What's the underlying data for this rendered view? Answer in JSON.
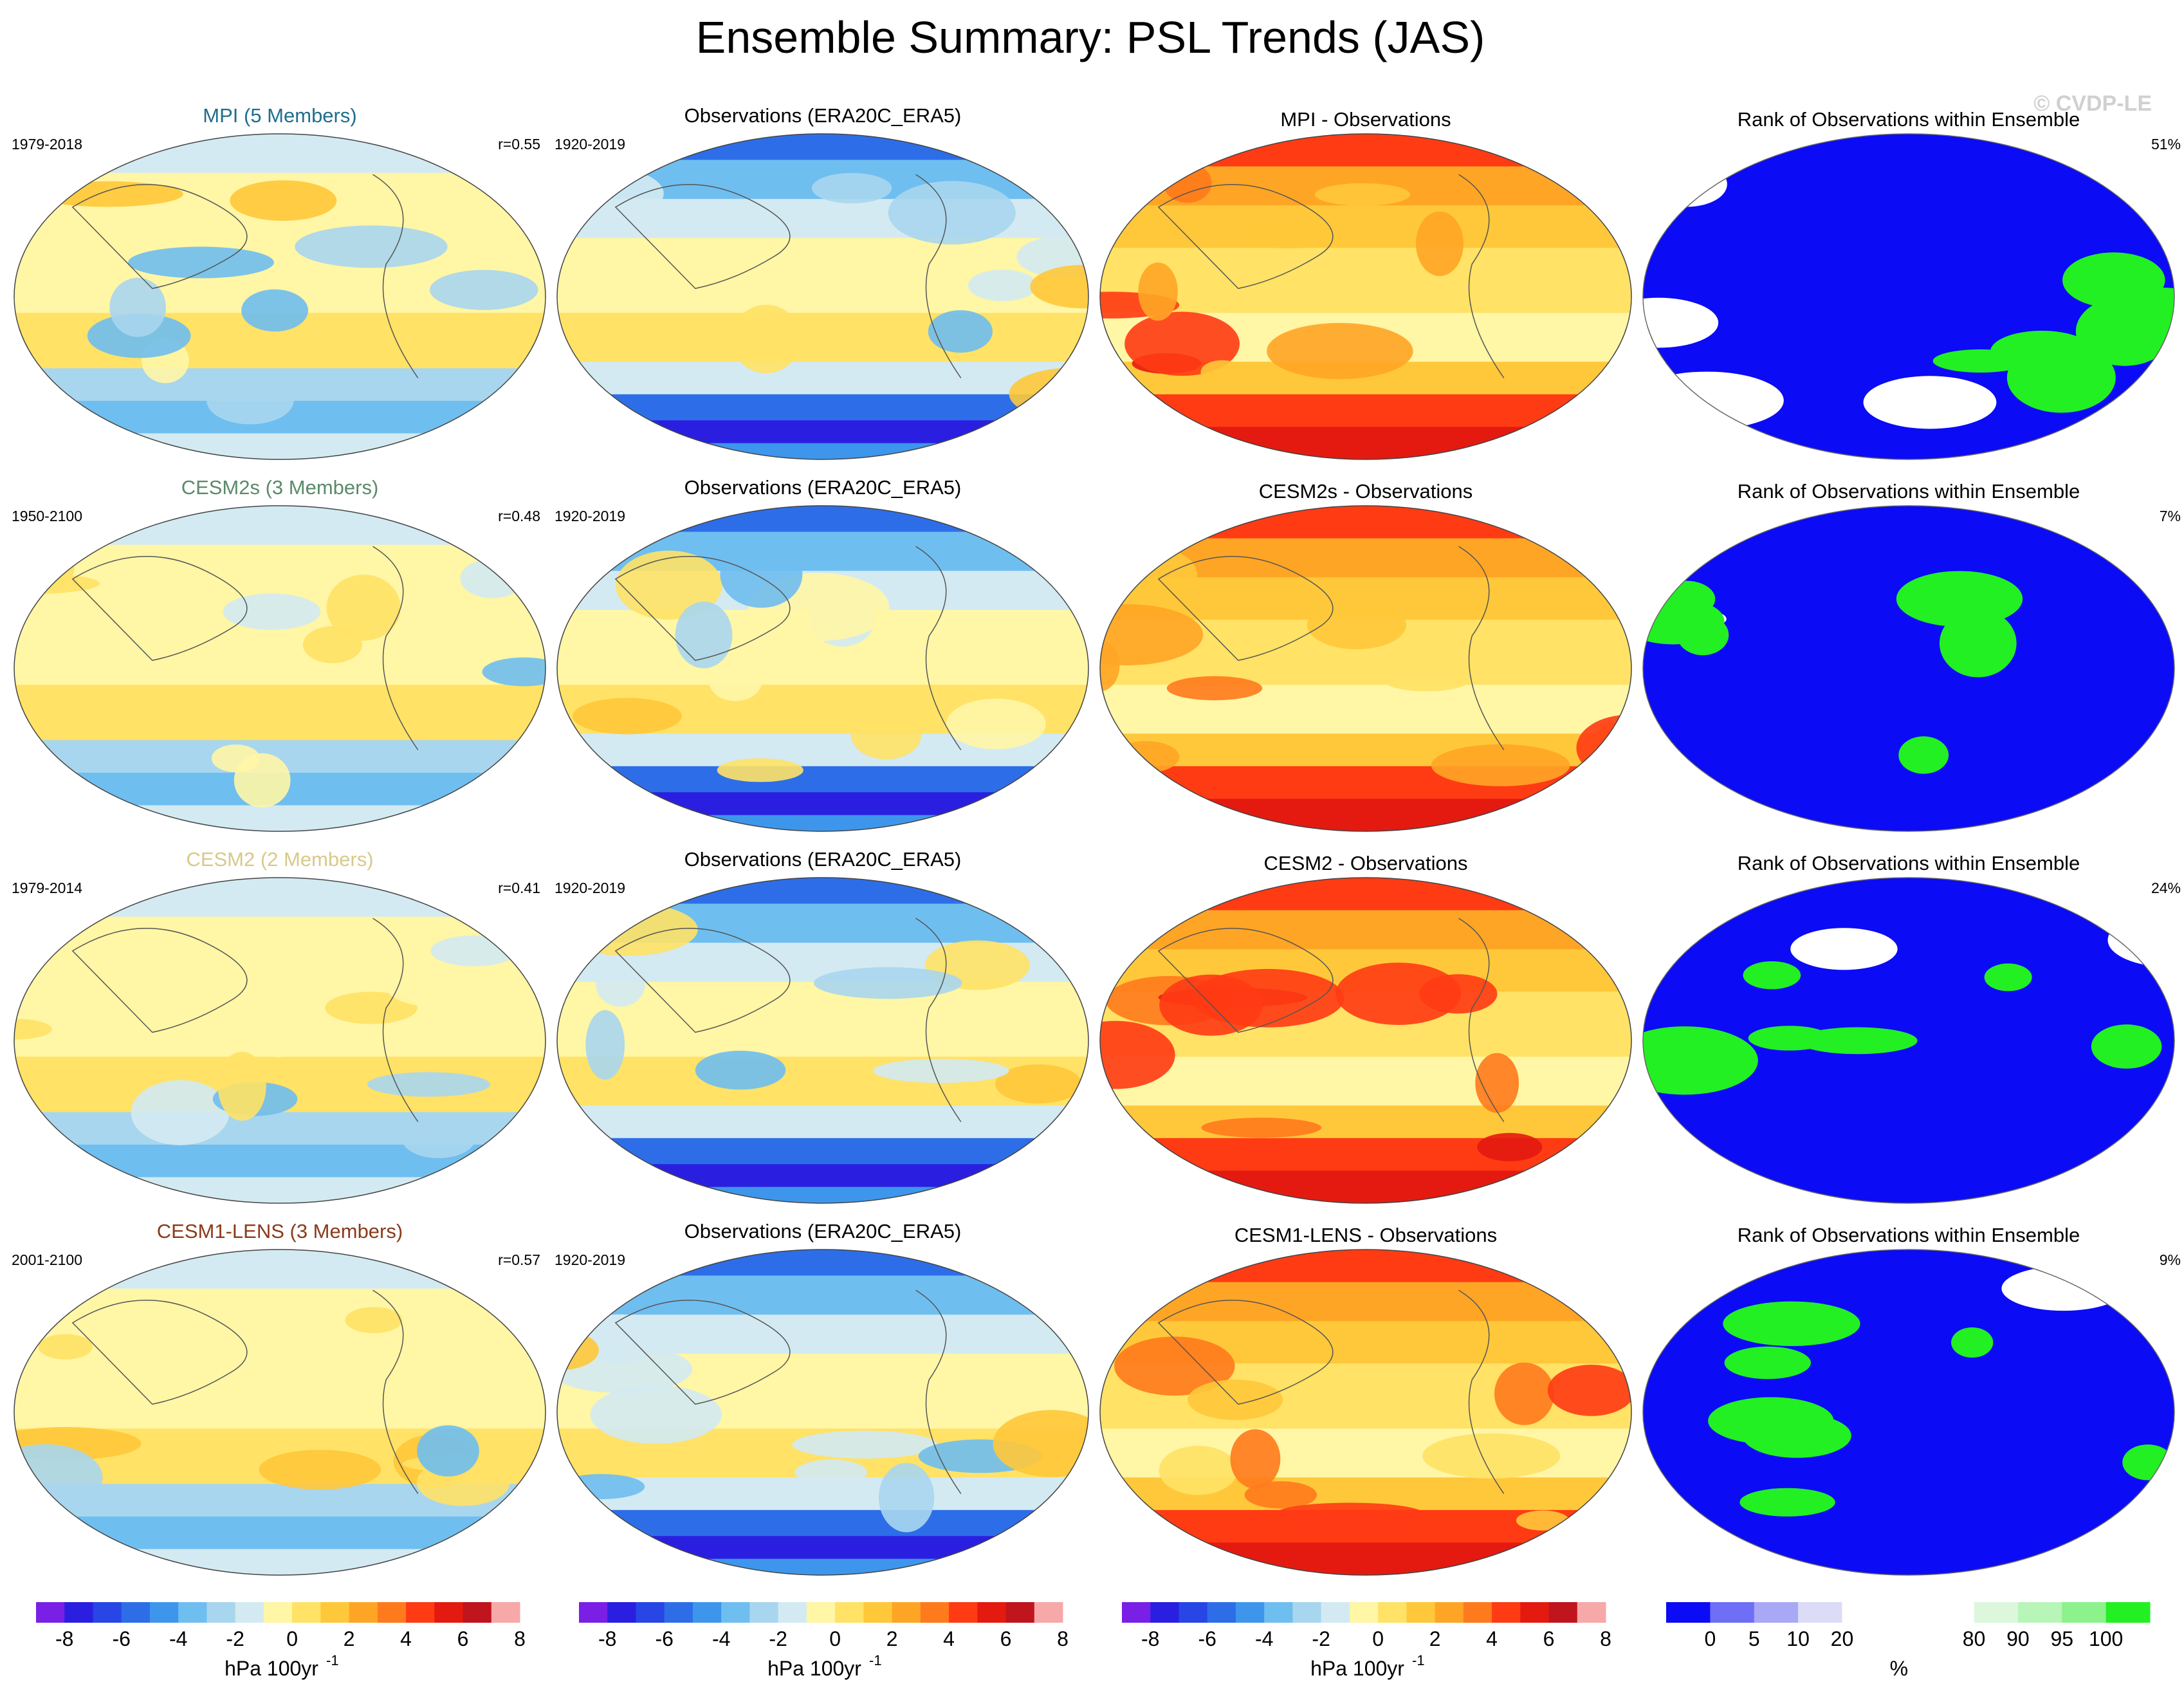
{
  "chart_data": {
    "type": "map",
    "title": "Ensemble Summary: PSL Trends (JAS)",
    "copyright": "© CVDP-LE",
    "colors": {
      "model_title_mpi": "#1f6e8c",
      "model_title_cesm2s": "#5a8a6a",
      "model_title_cesm2": "#d8c98a",
      "model_title_cesm1": "#8b3a1a",
      "coastline": "#555555"
    },
    "rows": [
      {
        "model": {
          "title": "MPI (5 Members)",
          "years": "1979-2018",
          "r": "r=0.55"
        },
        "obs": {
          "title": "Observations (ERA20C_ERA5)",
          "years": "1920-2019"
        },
        "diff": {
          "title": "MPI - Observations"
        },
        "rank": {
          "title": "Rank of Observations within Ensemble",
          "pct": "51%"
        }
      },
      {
        "model": {
          "title": "CESM2s (3 Members)",
          "years": "1950-2100",
          "r": "r=0.48"
        },
        "obs": {
          "title": "Observations (ERA20C_ERA5)",
          "years": "1920-2019"
        },
        "diff": {
          "title": "CESM2s - Observations"
        },
        "rank": {
          "title": "Rank of Observations within Ensemble",
          "pct": "7%"
        }
      },
      {
        "model": {
          "title": "CESM2 (2 Members)",
          "years": "1979-2014",
          "r": "r=0.41"
        },
        "obs": {
          "title": "Observations (ERA20C_ERA5)",
          "years": "1920-2019"
        },
        "diff": {
          "title": "CESM2 - Observations"
        },
        "rank": {
          "title": "Rank of Observations within Ensemble",
          "pct": "24%"
        }
      },
      {
        "model": {
          "title": "CESM1-LENS (3 Members)",
          "years": "2001-2100",
          "r": "r=0.57"
        },
        "obs": {
          "title": "Observations (ERA20C_ERA5)",
          "years": "1920-2019"
        },
        "diff": {
          "title": "CESM1-LENS - Observations"
        },
        "rank": {
          "title": "Rank of Observations within Ensemble",
          "pct": "9%"
        }
      }
    ],
    "trend_colorbar": {
      "label": "hPa 100yr",
      "label_sup": "-1",
      "ticks": [
        "-8",
        "-6",
        "-4",
        "-2",
        "0",
        "2",
        "4",
        "6",
        "8"
      ],
      "colors": [
        "#7a1fe6",
        "#2a1fe0",
        "#2845e6",
        "#2d6ee8",
        "#3d96ec",
        "#6fbef0",
        "#a8d6ee",
        "#d3eaf2",
        "#fff6a6",
        "#ffe266",
        "#ffc83a",
        "#ffa526",
        "#ff7a1c",
        "#ff3b14",
        "#e41a10",
        "#c0141e",
        "#f7a8a8"
      ]
    },
    "rank_colorbar": {
      "label": "%",
      "ticks": [
        "0",
        "5",
        "10",
        "20",
        "80",
        "90",
        "95",
        "100"
      ],
      "colors": [
        "#0b0bf5",
        "#6e6ef7",
        "#a8a8f7",
        "#dcdcf7",
        "#ffffff",
        "#ffffff",
        "#ffffff",
        "#ddf7dd",
        "#b8f5b8",
        "#8cf28c",
        "#22f022"
      ]
    }
  }
}
